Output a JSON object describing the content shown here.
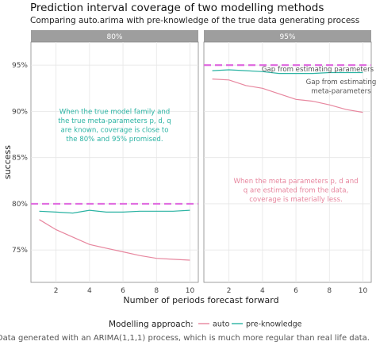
{
  "title": "Prediction interval coverage of two modelling methods",
  "subtitle": "Comparing auto.arima with pre-knowledge of the true data generating process",
  "caption": "Data generated with an ARIMA(1,1,1) process, which is much more regular than real life data.",
  "colors": {
    "auto": "#E7869E",
    "pre_knowledge": "#2BB3A3",
    "target_line": "#E06DE0",
    "panel_bg": "#FFFFFF",
    "panel_border": "#888888",
    "grid": "#E6E6E6",
    "strip_bg": "#9E9E9E",
    "annotation_teal": "#2BB3A3",
    "annotation_pink": "#E7869E",
    "annotation_grey": "#555555"
  },
  "chart_data": {
    "type": "line",
    "xlabel": "Number of periods forecast forward",
    "ylabel": "success",
    "xlim": [
      0.5,
      10.5
    ],
    "ylim": [
      0.715,
      0.975
    ],
    "x_ticks": [
      2,
      4,
      6,
      8,
      10
    ],
    "y_ticks": [
      0.75,
      0.8,
      0.85,
      0.9,
      0.95
    ],
    "y_tick_labels": [
      "75%",
      "80%",
      "85%",
      "90%",
      "95%"
    ],
    "grid": true,
    "legend": {
      "title": "Modelling approach:",
      "position": "bottom",
      "entries": [
        "auto",
        "pre-knowledge"
      ]
    },
    "x": [
      1,
      2,
      3,
      4,
      5,
      6,
      7,
      8,
      9,
      10
    ],
    "panels": [
      {
        "strip": "80%",
        "target": 0.8,
        "series": [
          {
            "name": "auto",
            "values": [
              0.783,
              0.772,
              0.764,
              0.756,
              0.752,
              0.748,
              0.744,
              0.741,
              0.74,
              0.739
            ]
          },
          {
            "name": "pre-knowledge",
            "values": [
              0.792,
              0.791,
              0.79,
              0.793,
              0.791,
              0.791,
              0.792,
              0.792,
              0.792,
              0.793
            ]
          }
        ],
        "annotations": [
          {
            "lines": [
              "When the true model family and",
              "the true meta-parameters p, d, q",
              "are known, coverage is close to",
              "the 80% and 95% promised."
            ],
            "x": 5.5,
            "y": 0.885,
            "color": "annotation_teal"
          }
        ]
      },
      {
        "strip": "95%",
        "target": 0.95,
        "series": [
          {
            "name": "auto",
            "values": [
              0.935,
              0.934,
              0.928,
              0.925,
              0.919,
              0.913,
              0.911,
              0.907,
              0.902,
              0.899
            ]
          },
          {
            "name": "pre-knowledge",
            "values": [
              0.944,
              0.945,
              0.944,
              0.943,
              0.941,
              0.941,
              0.941,
              0.942,
              0.942,
              0.942
            ]
          }
        ],
        "annotations": [
          {
            "lines": [
              "Gap from estimating parameters"
            ],
            "x": 7.3,
            "y": 0.946,
            "color": "annotation_grey"
          },
          {
            "lines": [
              "Gap from estimating",
              "meta-parameters"
            ],
            "x": 8.7,
            "y": 0.927,
            "color": "annotation_grey"
          },
          {
            "lines": [
              "When the meta parameters p, d and",
              "q are estimated from the data,",
              "coverage is materially less."
            ],
            "x": 6.0,
            "y": 0.815,
            "color": "annotation_pink"
          }
        ]
      }
    ]
  }
}
